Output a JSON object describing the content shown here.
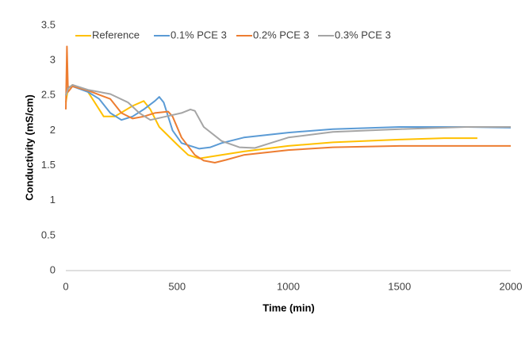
{
  "chart_data": {
    "type": "line",
    "xlabel": "Time (min)",
    "ylabel": "Conductivity (mS/cm)",
    "xlim": [
      0,
      2000
    ],
    "xticks": [
      0,
      500,
      1000,
      1500,
      2000
    ],
    "ylim": [
      0,
      3.5
    ],
    "yticks": [
      0,
      0.5,
      1,
      1.5,
      2,
      2.5,
      3,
      3.5
    ],
    "grid": false,
    "legend": "top",
    "series": [
      {
        "name": "Reference",
        "color": "#ffc000",
        "x": [
          0,
          10,
          30,
          100,
          150,
          170,
          220,
          300,
          350,
          380,
          420,
          500,
          550,
          600,
          700,
          800,
          1000,
          1200,
          1500,
          1700,
          1850
        ],
        "values": [
          2.4,
          2.6,
          2.65,
          2.55,
          2.3,
          2.2,
          2.2,
          2.35,
          2.42,
          2.3,
          2.05,
          1.8,
          1.65,
          1.6,
          1.65,
          1.7,
          1.78,
          1.83,
          1.87,
          1.89,
          1.89
        ]
      },
      {
        "name": "0.1% PCE 3",
        "color": "#5b9bd5",
        "x": [
          0,
          10,
          30,
          100,
          150,
          200,
          250,
          300,
          350,
          400,
          420,
          440,
          480,
          520,
          600,
          650,
          700,
          800,
          1000,
          1200,
          1500,
          1800,
          2000
        ],
        "values": [
          2.5,
          2.62,
          2.63,
          2.55,
          2.45,
          2.25,
          2.15,
          2.2,
          2.3,
          2.42,
          2.48,
          2.4,
          2.0,
          1.82,
          1.74,
          1.76,
          1.82,
          1.9,
          1.97,
          2.02,
          2.05,
          2.05,
          2.04
        ]
      },
      {
        "name": "0.2% PCE 3",
        "color": "#ed7d31",
        "x": [
          0,
          5,
          10,
          30,
          100,
          200,
          250,
          300,
          350,
          400,
          460,
          480,
          520,
          580,
          620,
          670,
          720,
          800,
          1000,
          1200,
          1500,
          2000
        ],
        "values": [
          2.3,
          3.2,
          2.55,
          2.63,
          2.57,
          2.45,
          2.25,
          2.17,
          2.2,
          2.25,
          2.27,
          2.2,
          1.9,
          1.65,
          1.57,
          1.54,
          1.58,
          1.65,
          1.72,
          1.76,
          1.78,
          1.78
        ]
      },
      {
        "name": "0.3% PCE 3",
        "color": "#a5a5a5",
        "x": [
          0,
          10,
          30,
          100,
          200,
          280,
          330,
          380,
          450,
          520,
          560,
          580,
          620,
          700,
          780,
          850,
          900,
          1000,
          1200,
          1500,
          1800,
          2000
        ],
        "values": [
          2.5,
          2.6,
          2.65,
          2.58,
          2.52,
          2.4,
          2.25,
          2.15,
          2.2,
          2.25,
          2.3,
          2.28,
          2.05,
          1.85,
          1.76,
          1.75,
          1.8,
          1.9,
          1.98,
          2.02,
          2.05,
          2.05
        ]
      }
    ]
  }
}
